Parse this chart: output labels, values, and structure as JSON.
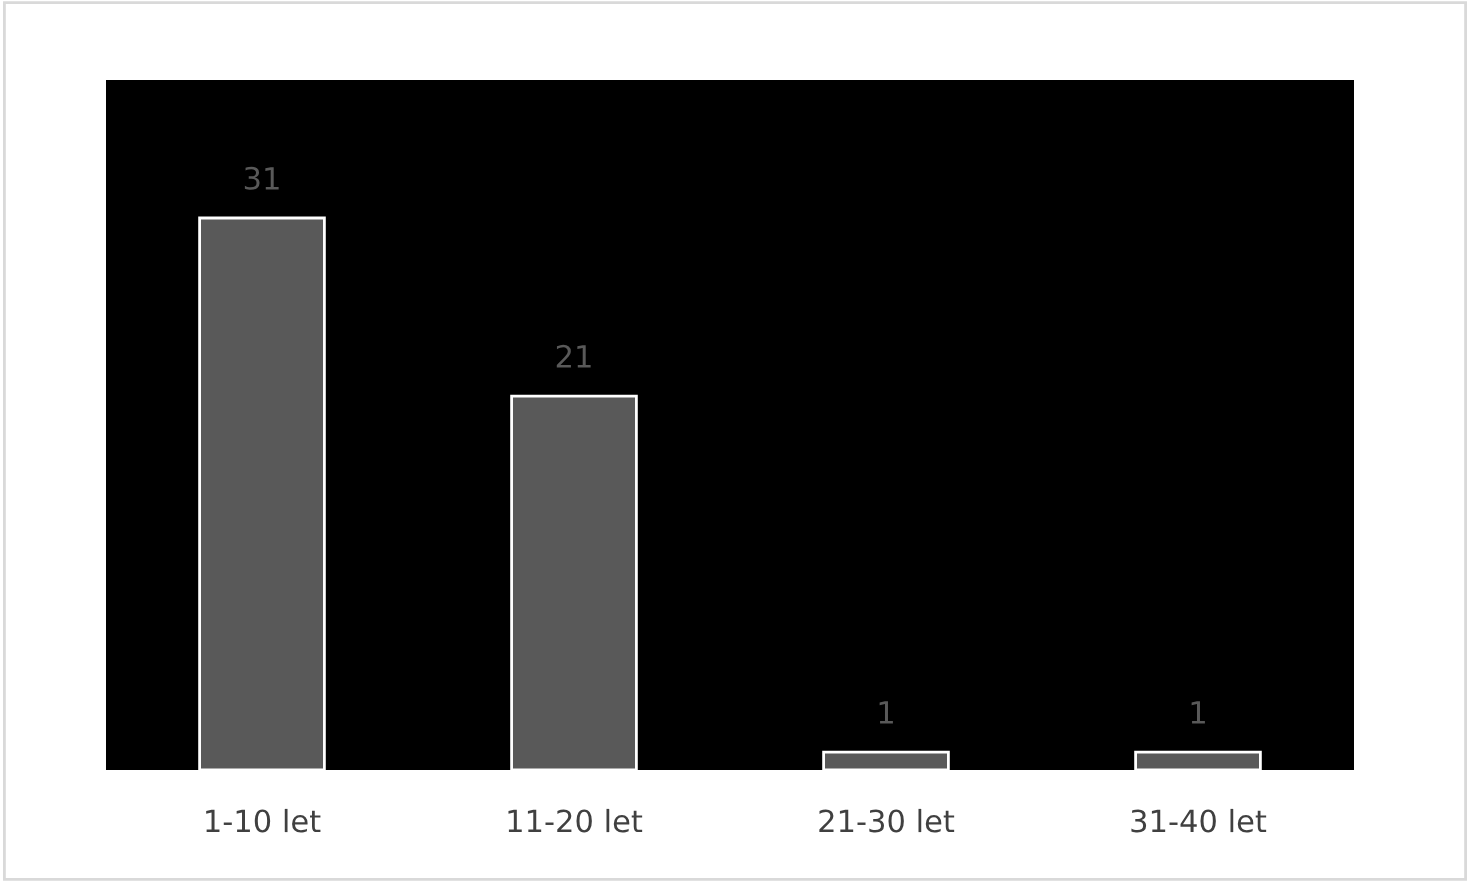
{
  "chart_data": {
    "type": "bar",
    "categories": [
      "1-10 let",
      "11-20 let",
      "21-30 let",
      "31-40 let"
    ],
    "values": [
      31,
      21,
      1,
      1
    ],
    "color": "#595959",
    "data_labels": true
  }
}
